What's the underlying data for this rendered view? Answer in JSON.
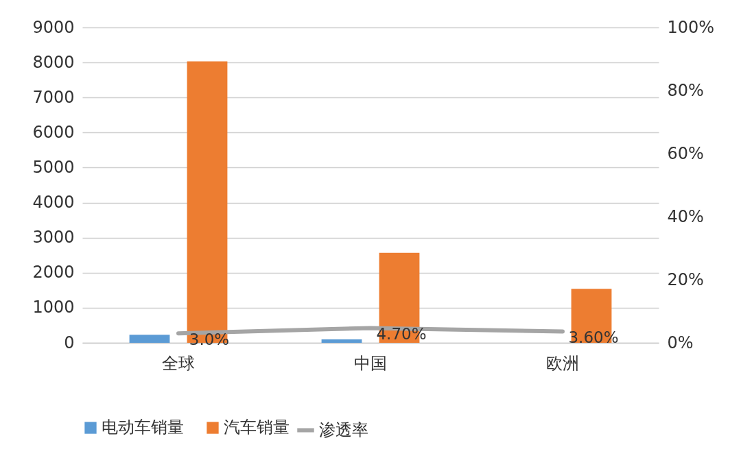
{
  "chart_data": {
    "type": "bar",
    "categories": [
      "全球",
      "中国",
      "欧洲"
    ],
    "series": [
      {
        "name": "电动车销量",
        "color": "#5b9bd5",
        "values": [
          230,
          100,
          null
        ]
      },
      {
        "name": "汽车销量",
        "color": "#ed7d31",
        "values": [
          8030,
          2570,
          1540
        ]
      },
      {
        "name": "渗透率",
        "type": "line",
        "axis": "y2",
        "color": "#a5a5a5",
        "values": [
          3.0,
          4.7,
          3.6
        ],
        "value_labels": [
          "3.0%",
          "4.70%",
          "3.60%"
        ]
      }
    ],
    "ylim": [
      0,
      9000
    ],
    "yticks": [
      0,
      1000,
      2000,
      3000,
      4000,
      5000,
      6000,
      7000,
      8000,
      9000
    ],
    "y2lim": [
      0,
      100
    ],
    "y2ticks": [
      {
        "value": 0,
        "label": "0%"
      },
      {
        "value": 20,
        "label": "20%"
      },
      {
        "value": 40,
        "label": "40%"
      },
      {
        "value": 60,
        "label": "60%"
      },
      {
        "value": 80,
        "label": "80%"
      },
      {
        "value": 100,
        "label": "100%"
      }
    ],
    "grid": "y",
    "legend": "bottom"
  }
}
